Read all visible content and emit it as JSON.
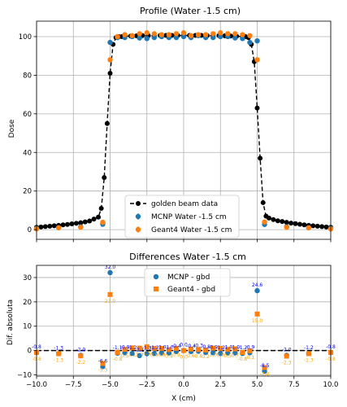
{
  "chart_data": [
    {
      "type": "line",
      "title": "Profile (Water -1.5 cm)",
      "xlabel": "",
      "ylabel": "Dose",
      "xlim": [
        -10,
        10
      ],
      "ylim": [
        -5,
        108
      ],
      "xticks": [
        -10.0,
        -7.5,
        -5.0,
        -2.5,
        0.0,
        2.5,
        5.0,
        7.5,
        10.0
      ],
      "yticks": [
        0,
        20,
        40,
        60,
        80,
        100
      ],
      "grid": true,
      "legend_position": "lower-center",
      "series": [
        {
          "name": "golden beam data",
          "style": "dashed-line-with-markers",
          "color": "#000000",
          "x": [
            -10.0,
            -9.7,
            -9.4,
            -9.1,
            -8.8,
            -8.5,
            -8.2,
            -7.9,
            -7.6,
            -7.3,
            -7.0,
            -6.7,
            -6.4,
            -6.1,
            -5.8,
            -5.6,
            -5.4,
            -5.2,
            -5.0,
            -4.8,
            -4.6,
            -4.4,
            -4.2,
            -4.0,
            -3.6,
            -3.2,
            -2.8,
            -2.4,
            -2.0,
            -1.6,
            -1.2,
            -0.8,
            -0.4,
            0.0,
            0.4,
            0.8,
            1.2,
            1.6,
            2.0,
            2.4,
            2.8,
            3.2,
            3.6,
            4.0,
            4.2,
            4.4,
            4.6,
            4.8,
            5.0,
            5.2,
            5.4,
            5.6,
            5.8,
            6.1,
            6.4,
            6.7,
            7.0,
            7.3,
            7.6,
            7.9,
            8.2,
            8.5,
            8.8,
            9.1,
            9.4,
            9.7,
            10.0
          ],
          "y": [
            1.2,
            1.4,
            1.6,
            1.8,
            2.0,
            2.2,
            2.5,
            2.7,
            3.0,
            3.3,
            3.6,
            4.0,
            4.5,
            5.5,
            6.5,
            11,
            27,
            55,
            81,
            96,
            99.5,
            100,
            100,
            100.2,
            100.3,
            100.4,
            100.5,
            100.5,
            100.5,
            100.6,
            100.6,
            100.6,
            100.6,
            100.6,
            100.6,
            100.6,
            100.6,
            100.5,
            100.5,
            100.5,
            100.4,
            100.3,
            100.2,
            100,
            100,
            99.5,
            96,
            87,
            63,
            37,
            14,
            7,
            6,
            5.2,
            4.6,
            4.2,
            3.8,
            3.4,
            3.1,
            2.8,
            2.5,
            2.2,
            2.0,
            1.8,
            1.6,
            1.4,
            1.2
          ]
        },
        {
          "name": "MCNP Water -1.5 cm",
          "style": "markers-with-errorbars",
          "color": "#1f77b4",
          "x": [
            -10.0,
            -8.5,
            -7.0,
            -5.5,
            -5.0,
            -4.5,
            -4.0,
            -3.5,
            -3.0,
            -2.5,
            -2.0,
            -1.5,
            -1.0,
            -0.5,
            0.0,
            0.5,
            1.0,
            1.5,
            2.0,
            2.5,
            3.0,
            3.5,
            4.0,
            4.5,
            5.0,
            5.5,
            7.0,
            8.5,
            10.0
          ],
          "y": [
            0.7,
            1.0,
            1.5,
            2.8,
            97.0,
            99.5,
            99.5,
            100.0,
            99.3,
            99.0,
            99.5,
            100.0,
            99.5,
            99.5,
            100.0,
            99.5,
            100.5,
            99.5,
            99.5,
            100.0,
            100.0,
            99.3,
            99.0,
            97.0,
            97.8,
            2.7,
            1.5,
            1.0,
            0.7
          ]
        },
        {
          "name": "Geant4 Water -1.5 cm",
          "style": "markers-with-errorbars",
          "color": "#ff7f0e",
          "x": [
            -10.0,
            -8.5,
            -7.0,
            -5.5,
            -5.0,
            -4.5,
            -4.0,
            -3.5,
            -3.0,
            -2.5,
            -2.0,
            -1.5,
            -1.0,
            -0.5,
            0.0,
            0.5,
            1.0,
            1.5,
            2.0,
            2.5,
            3.0,
            3.5,
            4.0,
            4.5,
            5.0,
            5.5,
            7.0,
            8.5,
            10.0
          ],
          "y": [
            0.4,
            1.0,
            1.2,
            3.8,
            88.0,
            100.0,
            101.0,
            100.5,
            101.5,
            102.0,
            101.5,
            101.0,
            101.0,
            101.5,
            102.0,
            100.5,
            101.0,
            101.0,
            101.5,
            102.0,
            101.5,
            101.5,
            101.0,
            100.5,
            88.0,
            4.0,
            1.2,
            1.0,
            0.4
          ]
        }
      ]
    },
    {
      "type": "scatter",
      "title": "Differences Water -1.5 cm",
      "xlabel": "X (cm)",
      "ylabel": "Dif. absoluta",
      "xlim": [
        -10,
        10
      ],
      "ylim": [
        -10.5,
        35
      ],
      "xticks": [
        -10.0,
        -7.5,
        -5.0,
        -2.5,
        0.0,
        2.5,
        5.0,
        7.5,
        10.0
      ],
      "xtick_labels": [
        "−10.0",
        "−7.5",
        "−5.0",
        "−2.5",
        "0.0",
        "2.5",
        "5.0",
        "7.5",
        "10.0"
      ],
      "yticks": [
        -10,
        0,
        10,
        20,
        30
      ],
      "ytick_labels": [
        "−10",
        "0",
        "10",
        "20",
        "30"
      ],
      "grid": true,
      "legend_position": "upper-center",
      "zero_line": true,
      "series": [
        {
          "name": "MCNP - gbd",
          "color": "#1f77b4",
          "text_color": "#0000ee",
          "x": [
            -10.0,
            -8.5,
            -7.0,
            -5.5,
            -5.0,
            -4.5,
            -4.0,
            -3.5,
            -3.0,
            -2.5,
            -2.0,
            -1.5,
            -1.0,
            -0.5,
            0.0,
            0.5,
            1.0,
            1.5,
            2.0,
            2.5,
            3.0,
            3.5,
            4.0,
            4.5,
            5.0,
            5.5,
            7.0,
            8.5,
            10.0
          ],
          "values": [
            -0.8,
            -1.3,
            -2.0,
            -6.6,
            32.0,
            -1.1,
            -0.9,
            -1.2,
            -2.1,
            -1.3,
            -1.2,
            -1.0,
            -1.0,
            -0.4,
            0.0,
            -0.4,
            -0.3,
            -0.8,
            -0.9,
            -1.2,
            -1.0,
            -1.0,
            -1.2,
            -0.9,
            24.6,
            -8.5,
            -2.0,
            -1.2,
            -0.8
          ],
          "labels": [
            "-0.8",
            "-1.3",
            "-2.0",
            "-6.6",
            "32.0",
            "-1.1",
            "-0.9",
            "-1.2",
            "-2.1",
            "-1.3",
            "-1.2",
            "-1.0",
            "-1.0",
            "-0.4",
            "0.0",
            "-0.4",
            "-0.3",
            "-0.8",
            "-0.9",
            "-1.2",
            "-1.0",
            "-1.0",
            "-1.2",
            "-0.9",
            "24.6",
            "-8.5",
            "-2.0",
            "-1.2",
            "-0.8"
          ]
        },
        {
          "name": "Geant4 - gbd",
          "color": "#ff7f0e",
          "text_color": "#ffa500",
          "x": [
            -10.0,
            -8.5,
            -7.0,
            -5.5,
            -5.0,
            -4.5,
            -4.0,
            -3.5,
            -3.0,
            -2.5,
            -2.0,
            -1.5,
            -1.0,
            -0.5,
            0.0,
            0.5,
            1.0,
            1.5,
            2.0,
            2.5,
            3.0,
            3.5,
            4.0,
            4.5,
            5.0,
            5.5,
            7.0,
            8.5,
            10.0
          ],
          "values": [
            -0.8,
            -1.3,
            -2.2,
            -5.3,
            23.0,
            -0.8,
            0.5,
            1.1,
            1.0,
            1.5,
            0.9,
            0.9,
            0.4,
            0.9,
            0.0,
            0.6,
            0.4,
            0.2,
            1.0,
            0.9,
            0.5,
            0.7,
            -0.8,
            -0.1,
            15.0,
            -7.0,
            -2.3,
            -1.3,
            -0.8
          ],
          "labels": [
            "-0.8",
            "-1.3",
            "-2.2",
            "-5.3",
            "23.0",
            "-0.8",
            "0.5",
            "1.1",
            "1.0",
            "1.5",
            "0.9",
            "0.9",
            "0.4",
            "0.9",
            "0.0",
            "0.6",
            "0.4",
            "0.2",
            "1.0",
            "0.9",
            "0.5",
            "0.7",
            "-0.8",
            "-0.1",
            "15.0",
            "-7.0",
            "-2.3",
            "-1.3",
            "-0.8"
          ]
        }
      ]
    }
  ]
}
